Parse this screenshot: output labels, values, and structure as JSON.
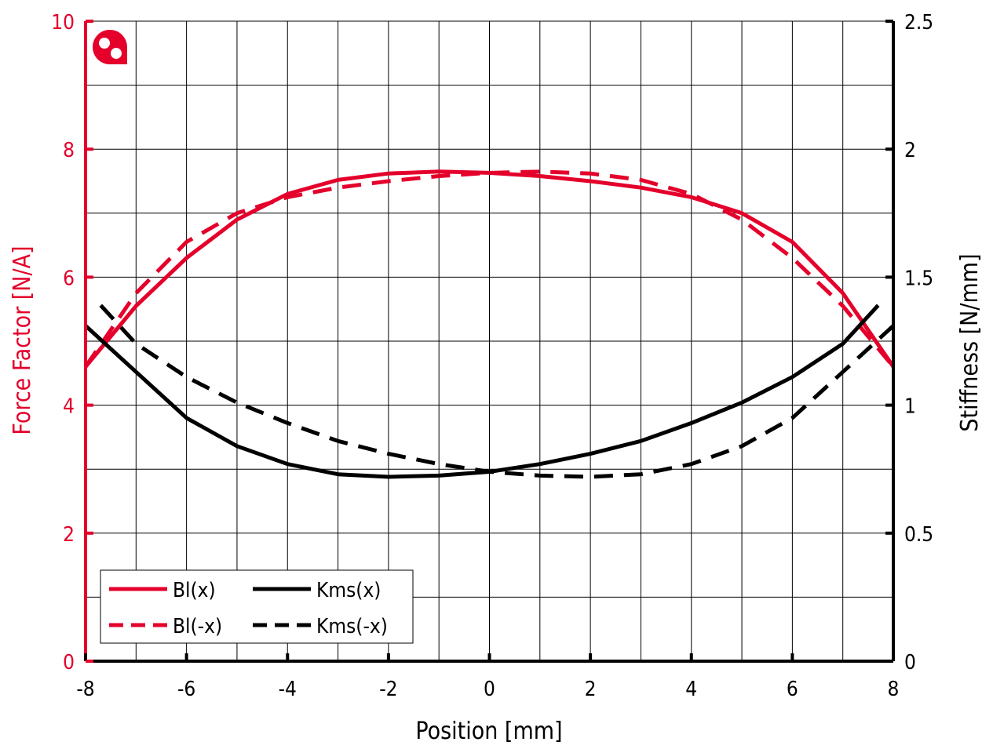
{
  "chart_data": {
    "type": "line",
    "xlabel": "Position [mm]",
    "ylabel_left": "Force Factor [N/A]",
    "ylabel_right": "Stiffness [N/mm]",
    "xlim": [
      -8,
      8
    ],
    "ylim_left": [
      0,
      10
    ],
    "ylim_right": [
      0,
      2.5
    ],
    "grid": true,
    "x_ticks": [
      -8,
      -6,
      -4,
      -2,
      0,
      2,
      4,
      6,
      8
    ],
    "y_ticks_left": [
      0,
      2,
      4,
      6,
      8,
      10
    ],
    "y_ticks_right": [
      0,
      0.5,
      1,
      1.5,
      2,
      2.5
    ],
    "y_ticks_left_labels": [
      "0",
      "2",
      "4",
      "6",
      "8",
      "10"
    ],
    "y_ticks_right_labels": [
      "0",
      "0.5",
      "1",
      "1.5",
      "2",
      "2.5"
    ],
    "x_ticks_labels": [
      "-8",
      "-6",
      "-4",
      "-2",
      "0",
      "2",
      "4",
      "6",
      "8"
    ],
    "legend_position": "bottom-left",
    "series": [
      {
        "name": "Bl(x)",
        "axis": "left",
        "style": "solid",
        "color": "#e4002b",
        "x": [
          -8,
          -7,
          -6,
          -5,
          -4,
          -3,
          -2,
          -1,
          0,
          1,
          2,
          3,
          4,
          5,
          6,
          7,
          8
        ],
        "y": [
          4.6,
          5.55,
          6.3,
          6.9,
          7.3,
          7.52,
          7.62,
          7.65,
          7.63,
          7.58,
          7.5,
          7.4,
          7.25,
          7.0,
          6.55,
          5.75,
          4.6
        ]
      },
      {
        "name": "Bl(-x)",
        "axis": "left",
        "style": "dashed",
        "color": "#e4002b",
        "x": [
          -8,
          -7,
          -6,
          -5,
          -4,
          -3,
          -2,
          -1,
          0,
          1,
          2,
          3,
          4,
          5,
          6,
          7,
          8
        ],
        "y": [
          4.6,
          5.75,
          6.55,
          7.0,
          7.25,
          7.4,
          7.5,
          7.58,
          7.63,
          7.65,
          7.62,
          7.52,
          7.3,
          6.9,
          6.3,
          5.55,
          4.6
        ]
      },
      {
        "name": "Kms(x)",
        "axis": "right",
        "style": "solid",
        "color": "#000000",
        "x": [
          -8,
          -7,
          -6,
          -5,
          -4,
          -3,
          -2,
          -1,
          0,
          1,
          2,
          3,
          4,
          5,
          6,
          7,
          7.7
        ],
        "y": [
          1.31,
          1.13,
          0.95,
          0.84,
          0.77,
          0.73,
          0.72,
          0.725,
          0.74,
          0.77,
          0.81,
          0.86,
          0.93,
          1.01,
          1.11,
          1.24,
          1.39
        ]
      },
      {
        "name": "Kms(-x)",
        "axis": "right",
        "style": "dashed",
        "color": "#000000",
        "x": [
          -7.7,
          -7,
          -6,
          -5,
          -4,
          -3,
          -2,
          -1,
          0,
          1,
          2,
          3,
          4,
          5,
          6,
          7,
          8
        ],
        "y": [
          1.39,
          1.24,
          1.11,
          1.01,
          0.93,
          0.86,
          0.81,
          0.77,
          0.74,
          0.725,
          0.72,
          0.73,
          0.77,
          0.84,
          0.95,
          1.13,
          1.31
        ]
      }
    ]
  },
  "colors": {
    "accent": "#e4002b",
    "axis_right": "#000000",
    "grid": "#000000"
  },
  "logo": {
    "name": "brand-logo-icon"
  }
}
